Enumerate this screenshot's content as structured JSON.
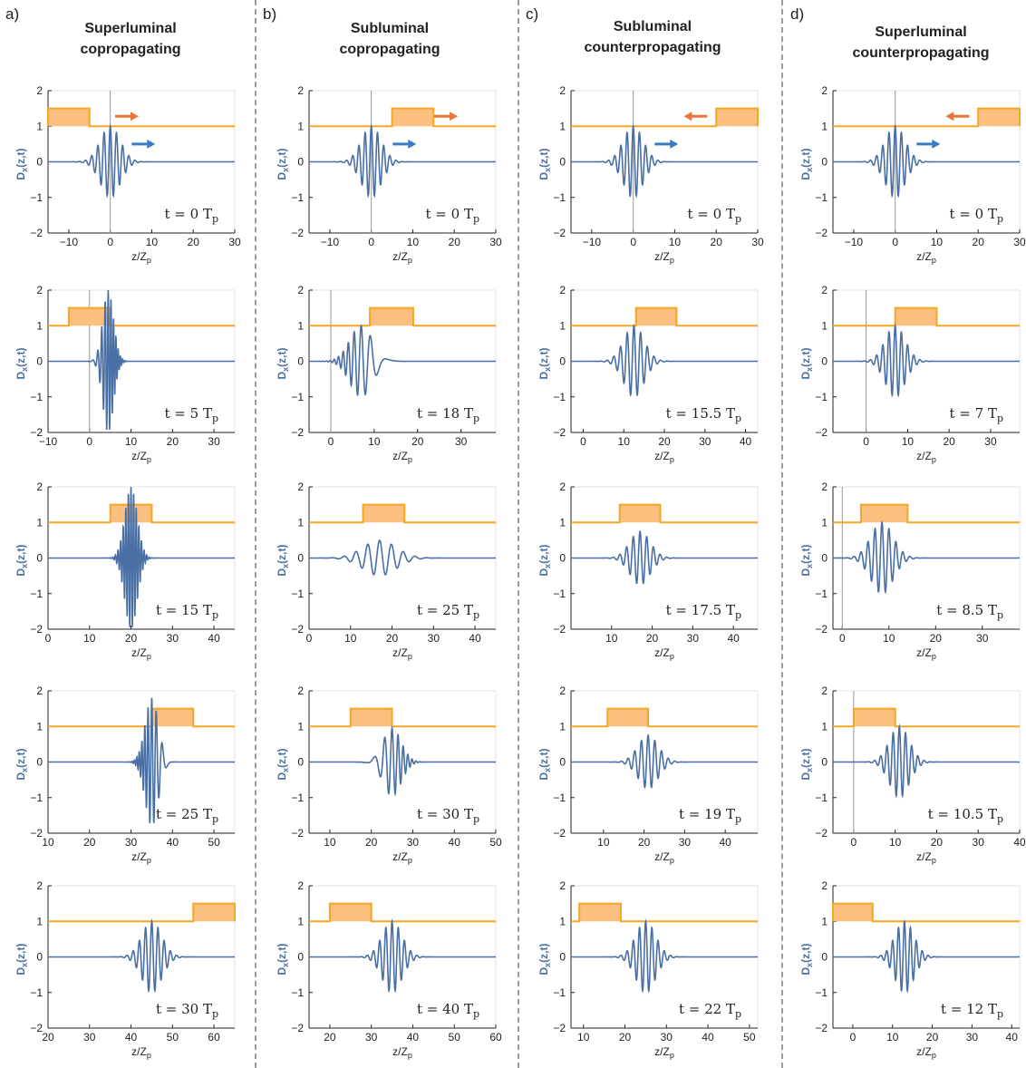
{
  "columns": [
    {
      "letter": "a)",
      "title_line1": "Superluminal",
      "title_line2": "copropagating"
    },
    {
      "letter": "b)",
      "title_line1": "Subluminal",
      "title_line2": "copropagating"
    },
    {
      "letter": "c)",
      "title_line1": "Subluminal",
      "title_line2": "counterpropagating"
    },
    {
      "letter": "d)",
      "title_line1": "Superluminal",
      "title_line2": "counterpropagating"
    }
  ],
  "colors": {
    "wave": "#4a6fa5",
    "step": "#f5a623",
    "step_fill": "#fbbf80",
    "arrow_orange": "#e8753a",
    "arrow_blue": "#3a7cc1",
    "axis": "#222222"
  },
  "ylabel_main": "D",
  "ylabel_sub": "x",
  "ylabel_args": "(z,t)",
  "xlabel_main": "z/Z",
  "xlabel_sub": "p",
  "chart_data": [
    {
      "type": "line",
      "col": 0,
      "row": 0,
      "time_label": "t = 0 T",
      "xlim": [
        -15,
        30
      ],
      "xticks": [
        -10,
        0,
        10,
        20,
        30
      ],
      "ylim": [
        -2,
        2
      ],
      "yticks": [
        -2,
        -1,
        0,
        1,
        2
      ],
      "step": {
        "x0": -15,
        "x1": -5,
        "low": 1,
        "high": 1.5
      },
      "pulse": {
        "center": 0,
        "sigma": 2.4,
        "k": 4.2,
        "amp": 1.0,
        "chirp": 0
      },
      "vline": 0,
      "arrows": [
        {
          "x": 4,
          "y": 1.28,
          "dir": 1,
          "color": "orange"
        },
        {
          "x": 8,
          "y": 0.5,
          "dir": 1,
          "color": "blue"
        }
      ]
    },
    {
      "type": "line",
      "col": 1,
      "row": 0,
      "time_label": "t = 0 T",
      "xlim": [
        -15,
        30
      ],
      "xticks": [
        -10,
        0,
        10,
        20,
        30
      ],
      "ylim": [
        -2,
        2
      ],
      "yticks": [
        -2,
        -1,
        0,
        1,
        2
      ],
      "step": {
        "x0": 5,
        "x1": 15,
        "low": 1,
        "high": 1.5
      },
      "pulse": {
        "center": 0,
        "sigma": 2.4,
        "k": 4.2,
        "amp": 1.0,
        "chirp": 0
      },
      "vline": 0,
      "arrows": [
        {
          "x": 18,
          "y": 1.28,
          "dir": 1,
          "color": "orange"
        },
        {
          "x": 8,
          "y": 0.5,
          "dir": 1,
          "color": "blue"
        }
      ]
    },
    {
      "type": "line",
      "col": 2,
      "row": 0,
      "time_label": "t = 0 T",
      "xlim": [
        -15,
        30
      ],
      "xticks": [
        -10,
        0,
        10,
        20,
        30
      ],
      "ylim": [
        -2,
        2
      ],
      "yticks": [
        -2,
        -1,
        0,
        1,
        2
      ],
      "step": {
        "x0": 20,
        "x1": 30,
        "low": 1,
        "high": 1.5
      },
      "pulse": {
        "center": 0,
        "sigma": 2.4,
        "k": 4.2,
        "amp": 1.0,
        "chirp": 0
      },
      "vline": 0,
      "arrows": [
        {
          "x": 15,
          "y": 1.28,
          "dir": -1,
          "color": "orange"
        },
        {
          "x": 8,
          "y": 0.5,
          "dir": 1,
          "color": "blue"
        }
      ]
    },
    {
      "type": "line",
      "col": 3,
      "row": 0,
      "time_label": "t = 0 T",
      "xlim": [
        -15,
        30
      ],
      "xticks": [
        -10,
        0,
        10,
        20,
        30
      ],
      "ylim": [
        -2,
        2
      ],
      "yticks": [
        -2,
        -1,
        0,
        1,
        2
      ],
      "step": {
        "x0": 20,
        "x1": 30,
        "low": 1,
        "high": 1.5
      },
      "pulse": {
        "center": 0,
        "sigma": 2.4,
        "k": 4.2,
        "amp": 1.0,
        "chirp": 0
      },
      "vline": 0,
      "arrows": [
        {
          "x": 15,
          "y": 1.28,
          "dir": -1,
          "color": "orange"
        },
        {
          "x": 8,
          "y": 0.5,
          "dir": 1,
          "color": "blue"
        }
      ]
    },
    {
      "type": "line",
      "col": 0,
      "row": 1,
      "time_label": "t = 5 T",
      "xlim": [
        -10,
        35
      ],
      "xticks": [
        -10,
        0,
        10,
        20,
        30
      ],
      "ylim": [
        -2,
        2
      ],
      "yticks": [
        -2,
        -1,
        0,
        1,
        2
      ],
      "step": {
        "x0": -5,
        "x1": 5,
        "low": 1,
        "high": 1.5
      },
      "pulse": {
        "center": 4.5,
        "sigma": 1.3,
        "k": 9,
        "amp": 2.0,
        "chirp": 0.6
      },
      "vline": 0,
      "arrows": []
    },
    {
      "type": "line",
      "col": 1,
      "row": 1,
      "time_label": "t = 18 T",
      "xlim": [
        -5,
        38
      ],
      "xticks": [
        0,
        10,
        20,
        30
      ],
      "ylim": [
        -2,
        2
      ],
      "yticks": [
        -2,
        -1,
        0,
        1,
        2
      ],
      "step": {
        "x0": 9,
        "x1": 19,
        "low": 1,
        "high": 1.5
      },
      "pulse": {
        "center": 7,
        "sigma": 2.6,
        "k": 3.5,
        "amp": 1.0,
        "chirp": -0.25
      },
      "vline": 0,
      "arrows": []
    },
    {
      "type": "line",
      "col": 2,
      "row": 1,
      "time_label": "t = 15.5 T",
      "xlim": [
        -3,
        43
      ],
      "xticks": [
        0,
        10,
        20,
        30,
        40
      ],
      "ylim": [
        -2,
        2
      ],
      "yticks": [
        -2,
        -1,
        0,
        1,
        2
      ],
      "step": {
        "x0": 13,
        "x1": 23,
        "low": 1,
        "high": 1.5
      },
      "pulse": {
        "center": 12.5,
        "sigma": 2.5,
        "k": 3.8,
        "amp": 1.0,
        "chirp": 0
      },
      "vline": null,
      "arrows": []
    },
    {
      "type": "line",
      "col": 3,
      "row": 1,
      "time_label": "t = 7 T",
      "xlim": [
        -8,
        37
      ],
      "xticks": [
        0,
        10,
        20,
        30
      ],
      "ylim": [
        -2,
        2
      ],
      "yticks": [
        -2,
        -1,
        0,
        1,
        2
      ],
      "step": {
        "x0": 7,
        "x1": 17,
        "low": 1,
        "high": 1.5
      },
      "pulse": {
        "center": 7,
        "sigma": 2.4,
        "k": 4.2,
        "amp": 1.0,
        "chirp": 0
      },
      "vline": 0,
      "arrows": []
    },
    {
      "type": "line",
      "col": 0,
      "row": 2,
      "time_label": "t = 15 T",
      "xlim": [
        0,
        45
      ],
      "xticks": [
        0,
        10,
        20,
        30,
        40
      ],
      "ylim": [
        -2,
        2
      ],
      "yticks": [
        -2,
        -1,
        0,
        1,
        2
      ],
      "step": {
        "x0": 15,
        "x1": 25,
        "low": 1,
        "high": 1.5
      },
      "pulse": {
        "center": 20,
        "sigma": 1.5,
        "k": 10,
        "amp": 2.0,
        "chirp": 0
      },
      "vline": null,
      "arrows": []
    },
    {
      "type": "line",
      "col": 1,
      "row": 2,
      "time_label": "t = 25 T",
      "xlim": [
        0,
        45
      ],
      "xticks": [
        0,
        10,
        20,
        30,
        40
      ],
      "ylim": [
        -2,
        2
      ],
      "yticks": [
        -2,
        -1,
        0,
        1,
        2
      ],
      "step": {
        "x0": 13,
        "x1": 23,
        "low": 1,
        "high": 1.5
      },
      "pulse": {
        "center": 17,
        "sigma": 4.0,
        "k": 2.2,
        "amp": 0.5,
        "chirp": 0
      },
      "vline": null,
      "arrows": []
    },
    {
      "type": "line",
      "col": 2,
      "row": 2,
      "time_label": "t = 17.5 T",
      "xlim": [
        0,
        46
      ],
      "xticks": [
        10,
        20,
        30,
        40
      ],
      "ylim": [
        -2,
        2
      ],
      "yticks": [
        -2,
        -1,
        0,
        1,
        2
      ],
      "step": {
        "x0": 12,
        "x1": 22,
        "low": 1,
        "high": 1.5
      },
      "pulse": {
        "center": 17,
        "sigma": 2.5,
        "k": 3.8,
        "amp": 0.75,
        "chirp": 0
      },
      "vline": null,
      "arrows": []
    },
    {
      "type": "line",
      "col": 3,
      "row": 2,
      "time_label": "t = 8.5 T",
      "xlim": [
        -2,
        38
      ],
      "xticks": [
        0,
        10,
        20,
        30
      ],
      "ylim": [
        -2,
        2
      ],
      "yticks": [
        -2,
        -1,
        0,
        1,
        2
      ],
      "step": {
        "x0": 4,
        "x1": 14,
        "low": 1,
        "high": 1.5
      },
      "pulse": {
        "center": 8.5,
        "sigma": 2.4,
        "k": 4.2,
        "amp": 1.0,
        "chirp": 0
      },
      "vline": 0,
      "arrows": []
    },
    {
      "type": "line",
      "col": 0,
      "row": 3,
      "time_label": "t = 25 T",
      "xlim": [
        10,
        55
      ],
      "xticks": [
        10,
        20,
        30,
        40,
        50
      ],
      "ylim": [
        -2,
        2
      ],
      "yticks": [
        -2,
        -1,
        0,
        1,
        2
      ],
      "step": {
        "x0": 35,
        "x1": 45,
        "low": 1,
        "high": 1.5
      },
      "pulse": {
        "center": 35,
        "sigma": 1.6,
        "k": 6.5,
        "amp": 1.8,
        "chirp": -0.6
      },
      "vline": null,
      "arrows": []
    },
    {
      "type": "line",
      "col": 1,
      "row": 3,
      "time_label": "t = 30 T",
      "xlim": [
        5,
        50
      ],
      "xticks": [
        10,
        20,
        30,
        40,
        50
      ],
      "ylim": [
        -2,
        2
      ],
      "yticks": [
        -2,
        -1,
        0,
        1,
        2
      ],
      "step": {
        "x0": 15,
        "x1": 25,
        "low": 1,
        "high": 1.5
      },
      "pulse": {
        "center": 25,
        "sigma": 2.2,
        "k": 4.0,
        "amp": 0.95,
        "chirp": 0.25
      },
      "vline": null,
      "arrows": []
    },
    {
      "type": "line",
      "col": 2,
      "row": 3,
      "time_label": "t = 19 T",
      "xlim": [
        2,
        48
      ],
      "xticks": [
        10,
        20,
        30,
        40
      ],
      "ylim": [
        -2,
        2
      ],
      "yticks": [
        -2,
        -1,
        0,
        1,
        2
      ],
      "step": {
        "x0": 11,
        "x1": 21,
        "low": 1,
        "high": 1.5
      },
      "pulse": {
        "center": 21,
        "sigma": 2.5,
        "k": 3.8,
        "amp": 0.75,
        "chirp": 0
      },
      "vline": null,
      "arrows": []
    },
    {
      "type": "line",
      "col": 3,
      "row": 3,
      "time_label": "t = 10.5 T",
      "xlim": [
        -5,
        40
      ],
      "xticks": [
        0,
        10,
        20,
        30,
        40
      ],
      "ylim": [
        -2,
        2
      ],
      "yticks": [
        -2,
        -1,
        0,
        1,
        2
      ],
      "step": {
        "x0": 0,
        "x1": 10,
        "low": 1,
        "high": 1.5
      },
      "pulse": {
        "center": 11,
        "sigma": 2.4,
        "k": 4.2,
        "amp": 1.0,
        "chirp": 0
      },
      "vline": 0,
      "arrows": []
    },
    {
      "type": "line",
      "col": 0,
      "row": 4,
      "time_label": "t = 30 T",
      "xlim": [
        20,
        65
      ],
      "xticks": [
        20,
        30,
        40,
        50,
        60
      ],
      "ylim": [
        -2,
        2
      ],
      "yticks": [
        -2,
        -1,
        0,
        1,
        2
      ],
      "step": {
        "x0": 55,
        "x1": 65,
        "low": 1,
        "high": 1.5
      },
      "pulse": {
        "center": 45,
        "sigma": 2.4,
        "k": 4.2,
        "amp": 1.0,
        "chirp": 0
      },
      "vline": null,
      "arrows": []
    },
    {
      "type": "line",
      "col": 1,
      "row": 4,
      "time_label": "t = 40 T",
      "xlim": [
        15,
        60
      ],
      "xticks": [
        20,
        30,
        40,
        50,
        60
      ],
      "ylim": [
        -2,
        2
      ],
      "yticks": [
        -2,
        -1,
        0,
        1,
        2
      ],
      "step": {
        "x0": 20,
        "x1": 30,
        "low": 1,
        "high": 1.5
      },
      "pulse": {
        "center": 35,
        "sigma": 2.4,
        "k": 4.2,
        "amp": 1.0,
        "chirp": 0
      },
      "vline": null,
      "arrows": []
    },
    {
      "type": "line",
      "col": 2,
      "row": 4,
      "time_label": "t = 22 T",
      "xlim": [
        7,
        52
      ],
      "xticks": [
        10,
        20,
        30,
        40,
        50
      ],
      "ylim": [
        -2,
        2
      ],
      "yticks": [
        -2,
        -1,
        0,
        1,
        2
      ],
      "step": {
        "x0": 9,
        "x1": 19,
        "low": 1,
        "high": 1.5
      },
      "pulse": {
        "center": 25,
        "sigma": 2.4,
        "k": 4.2,
        "amp": 1.0,
        "chirp": 0
      },
      "vline": null,
      "arrows": []
    },
    {
      "type": "line",
      "col": 3,
      "row": 4,
      "time_label": "t = 12 T",
      "xlim": [
        -5,
        42
      ],
      "xticks": [
        0,
        10,
        20,
        30,
        40
      ],
      "ylim": [
        -2,
        2
      ],
      "yticks": [
        -2,
        -1,
        0,
        1,
        2
      ],
      "step": {
        "x0": -5,
        "x1": 5,
        "low": 1,
        "high": 1.5
      },
      "pulse": {
        "center": 13,
        "sigma": 2.4,
        "k": 4.2,
        "amp": 1.0,
        "chirp": 0
      },
      "vline": null,
      "arrows": []
    }
  ]
}
